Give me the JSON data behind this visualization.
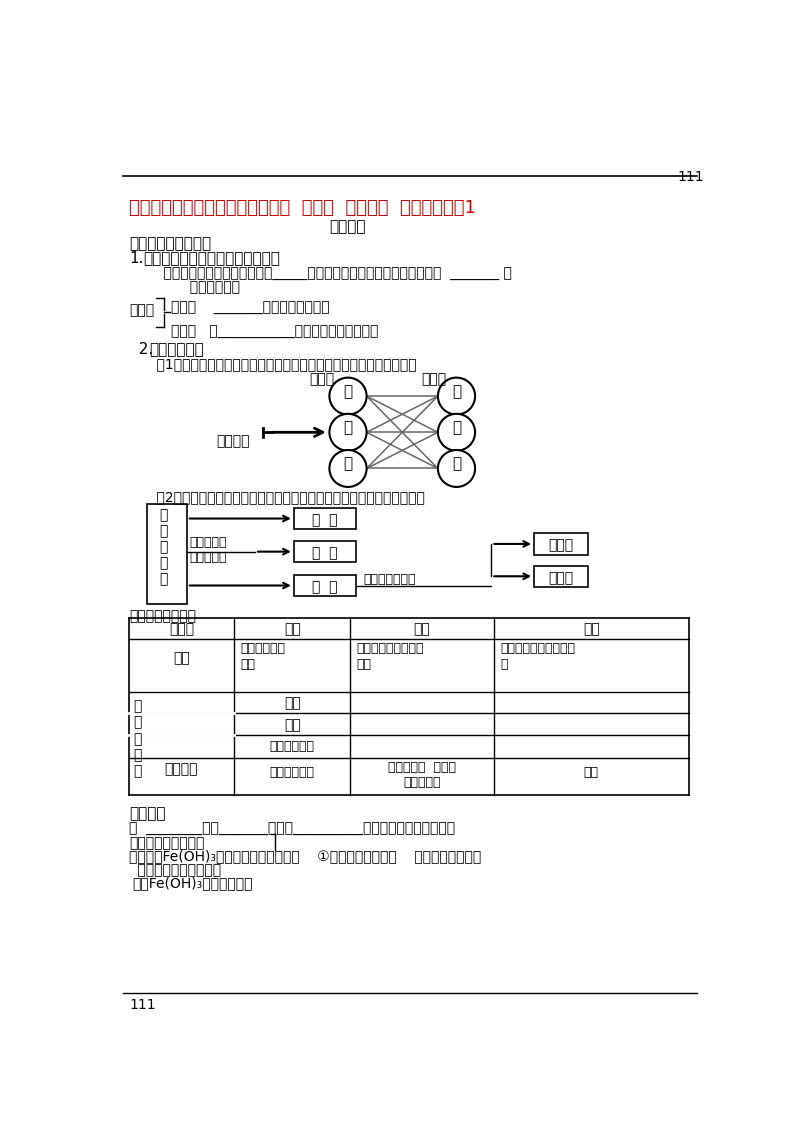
{
  "page_number": "111",
  "title": "湖南省邵阳市万和实验学校第二章  第一节  第二课时  新人教版必修1",
  "title_color": "#cc0000",
  "subtitle": "第二课时",
  "section2": "二、分散系及其分类",
  "section2_1_plain": "1.",
  "section2_1_bold": "分散系、分散质、分散剂的涵义：",
  "line1": "    分散系：一种（或多种）物质_____在另一种（或多种）物质中所得到的  _______ ，",
  "line2": "          叫做分散系。",
  "brace_label": "分散系",
  "brace_top_text": "分散质    _______的物质称作分散质",
  "brace_bot_text": "分散剂   起___________作用的物质称作分散剂",
  "section2_2_plain": "  2.",
  "section2_2_bold": "分散系的分类",
  "class1": "    （1）根据分散质与分散剂的状态（气态、液态、固态），分为九种：",
  "diag_left_label": "分散质",
  "diag_right_label": "分散剂",
  "nine_label": "九种组合",
  "left_nodes": [
    "气",
    "液",
    "固"
  ],
  "right_nodes": [
    "气",
    "液",
    "固"
  ],
  "class2": "    （2）液体分散剂的分散系的分类（根据分散质粒子大小），分为三种。",
  "box_left_text": "液\n体\n分\n散\n剂",
  "box_center": [
    "溶  液",
    "胶  体",
    "浊  液"
  ],
  "label_size": "根据分散质\n粒子的大小",
  "label_state": "根据分散质状态",
  "box_right": [
    "悬浊液",
    "乳浊液"
  ],
  "compare_title": "三种分散系的比较",
  "section3_bold": "三、胶体",
  "section3_line1": "：  ________粒子_______大小在__________之间的分散系叫做胶体。",
  "section3_line2": "气溶胶：云、烟、雾",
  "section3_line3_a": "液溶胶：Fe(OH)",
  "section3_line3_b": "3",
  "section3_line3_c": "胶体、淀粉胶体、豆浆    ①按分散剂（状态）    固溶胶：有色玻璃",
  "section3_line4": " 常用盐类的水解制胶体",
  "section3_line5_a": " 例如Fe(OH)",
  "section3_line5_b": "3",
  "section3_line5_c": "胶体的制备：",
  "footer": "111",
  "bg_color": "#ffffff"
}
